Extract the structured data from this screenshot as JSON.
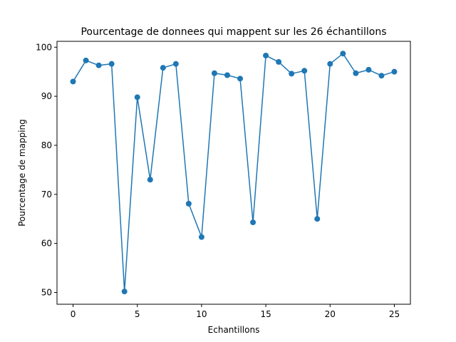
{
  "chart_data": {
    "type": "line",
    "title": "Pourcentage de donnees qui mappent sur les 26 échantillons",
    "xlabel": "Echantillons",
    "ylabel": "Pourcentage de mapping",
    "xlim": [
      -1.25,
      26.25
    ],
    "ylim": [
      47.6,
      101.2
    ],
    "xticks": [
      0,
      5,
      10,
      15,
      20,
      25
    ],
    "yticks": [
      50,
      60,
      70,
      80,
      90,
      100
    ],
    "grid": false,
    "color": "#1f77b4",
    "marker": "circle",
    "series": [
      {
        "x": [
          0,
          1,
          2,
          3,
          4,
          5,
          6,
          7,
          8,
          9,
          10,
          11,
          12,
          13,
          14,
          15,
          16,
          17,
          18,
          19,
          20,
          21,
          22,
          23,
          24,
          25
        ],
        "values": [
          93.0,
          97.3,
          96.3,
          96.6,
          50.2,
          89.8,
          73.0,
          95.8,
          96.6,
          68.1,
          61.3,
          94.7,
          94.3,
          93.6,
          64.3,
          98.3,
          97.0,
          94.6,
          95.2,
          65.0,
          96.6,
          98.7,
          94.7,
          95.4,
          94.2,
          95.0
        ]
      }
    ]
  }
}
